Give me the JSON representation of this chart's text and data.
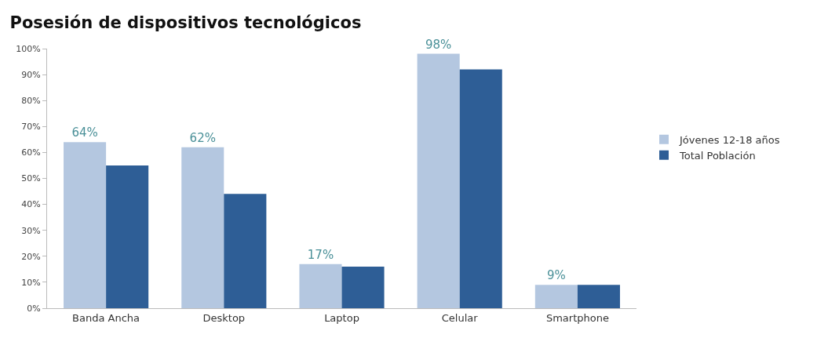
{
  "chart_data": {
    "type": "bar",
    "title": "Posesión de dispositivos tecnológicos",
    "categories": [
      "Banda Ancha",
      "Desktop",
      "Laptop",
      "Celular",
      "Smartphone"
    ],
    "series": [
      {
        "name": "Jóvenes 12-18 años",
        "color": "#b4c7e0",
        "values": [
          64,
          62,
          17,
          98,
          9
        ],
        "value_labels": [
          "64%",
          "62%",
          "17%",
          "98%",
          "9%"
        ]
      },
      {
        "name": "Total Población",
        "color": "#2e5e96",
        "values": [
          55,
          44,
          16,
          92,
          9
        ]
      }
    ],
    "ylim": [
      0,
      100
    ],
    "yticks": [
      {
        "value": 0,
        "label": "0%"
      },
      {
        "value": 10,
        "label": "10%"
      },
      {
        "value": 20,
        "label": "20%"
      },
      {
        "value": 30,
        "label": "30%"
      },
      {
        "value": 40,
        "label": "40%"
      },
      {
        "value": 50,
        "label": "50%"
      },
      {
        "value": 60,
        "label": "60%"
      },
      {
        "value": 70,
        "label": "70%"
      },
      {
        "value": 80,
        "label": "80%"
      },
      {
        "value": 90,
        "label": "90%"
      },
      {
        "value": 100,
        "label": "100%"
      }
    ],
    "legend": "right"
  }
}
